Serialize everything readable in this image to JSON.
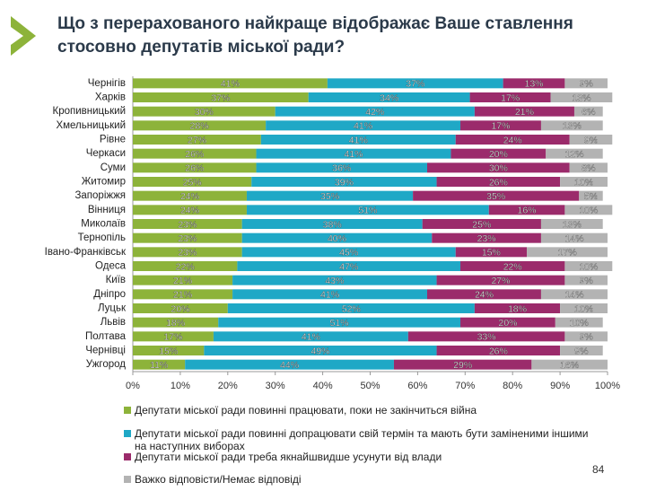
{
  "chart_data": {
    "type": "stacked_bar_horizontal",
    "title": "Що з перерахованого найкраще відображає Ваше ставлення стосовно депутатів міської ради?",
    "categories": [
      "Чернігів",
      "Харків",
      "Кропивницький",
      "Хмельницький",
      "Рівне",
      "Черкаси",
      "Суми",
      "Житомир",
      "Запоріжжя",
      "Вінниця",
      "Миколаїв",
      "Тернопіль",
      "Івано-Франківськ",
      "Одеса",
      "Київ",
      "Дніпро",
      "Луцьк",
      "Львів",
      "Полтава",
      "Чернівці",
      "Ужгород"
    ],
    "series": [
      {
        "name": "Депутати міської ради повинні працювати, поки не закінчиться війна",
        "color": "#8db33a",
        "values": [
          41,
          37,
          30,
          28,
          27,
          26,
          26,
          25,
          24,
          24,
          23,
          23,
          23,
          22,
          21,
          21,
          20,
          18,
          17,
          15,
          11
        ],
        "value_labels": [
          "41%",
          "37%",
          "30%",
          "28%",
          "27%",
          "26%",
          "26%",
          "25%",
          "24%",
          "24%",
          "23%",
          "23%",
          "23%",
          "22%",
          "21%",
          "21%",
          "20%",
          "18%",
          "17%",
          "15%",
          "11%"
        ]
      },
      {
        "name": "Депутати міської ради повинні допрацювати свій термін та мають  бути заміненими іншими на наступних виборах",
        "color": "#1fa8c6",
        "values": [
          37,
          34,
          42,
          41,
          41,
          41,
          36,
          39,
          35,
          51,
          38,
          40,
          45,
          47,
          43,
          41,
          52,
          51,
          41,
          49,
          44
        ],
        "value_labels": [
          "37%",
          "34%",
          "42%",
          "41%",
          "41%",
          "41%",
          "36%",
          "39%",
          "35%",
          "51%",
          "38%",
          "40%",
          "45%",
          "47%",
          "43%",
          "41%",
          "52%",
          "51%",
          "41%",
          "49%",
          "44%"
        ]
      },
      {
        "name": "Депутати міської ради треба якнайшвидше усунути від влади",
        "color": "#9b2b6b",
        "values": [
          13,
          17,
          21,
          17,
          24,
          20,
          30,
          26,
          35,
          16,
          25,
          23,
          15,
          22,
          27,
          24,
          18,
          20,
          33,
          26,
          29
        ],
        "value_labels": [
          "13%",
          "17%",
          "21%",
          "17%",
          "24%",
          "20%",
          "30%",
          "26%",
          "35%",
          "16%",
          "25%",
          "23%",
          "15%",
          "22%",
          "27%",
          "24%",
          "18%",
          "20%",
          "33%",
          "26%",
          "29%"
        ]
      },
      {
        "name": "Важко відповісти/Немає відповіді",
        "color": "#b3b3b3",
        "values": [
          9,
          13,
          6,
          13,
          9,
          12,
          8,
          10,
          5,
          10,
          13,
          14,
          17,
          10,
          9,
          14,
          10,
          10,
          9,
          9,
          16
        ],
        "value_labels": [
          "9%",
          "13%",
          "6%",
          "13%",
          "9%",
          "12%",
          "8%",
          "10%",
          "5%",
          "10%",
          "13%",
          "14%",
          "17%",
          "10%",
          "9%",
          "14%",
          "10%",
          "10%",
          "9%",
          "9%",
          "16%"
        ]
      }
    ],
    "xlim": [
      0,
      100
    ],
    "xticks": [
      {
        "value": 0,
        "label": "0%"
      },
      {
        "value": 10,
        "label": "10%"
      },
      {
        "value": 20,
        "label": "20%"
      },
      {
        "value": 30,
        "label": "30%"
      },
      {
        "value": 40,
        "label": "40%"
      },
      {
        "value": 50,
        "label": "50%"
      },
      {
        "value": 60,
        "label": "60%"
      },
      {
        "value": 70,
        "label": "70%"
      },
      {
        "value": 80,
        "label": "80%"
      },
      {
        "value": 90,
        "label": "90%"
      },
      {
        "value": 100,
        "label": "100%"
      }
    ],
    "page_number": "84"
  }
}
